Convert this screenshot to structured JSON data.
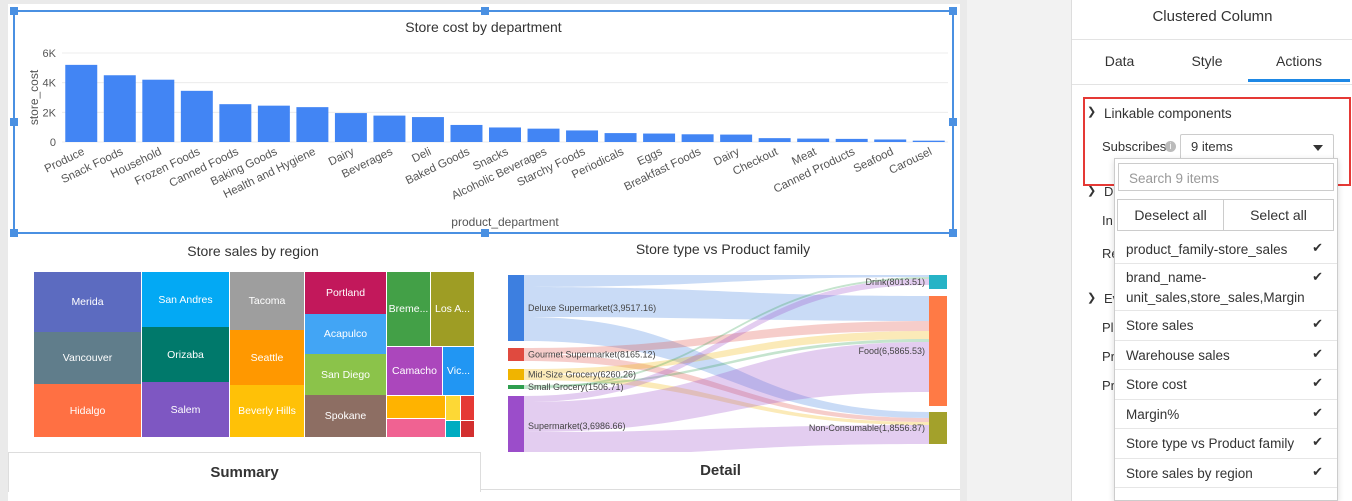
{
  "dashboard": {
    "bar_chart_title": "Store cost by department",
    "treemap_title": "Store sales by region",
    "sankey_title": "Store type vs Product family",
    "tabs": [
      "Summary",
      "Detail"
    ]
  },
  "chart_data": [
    {
      "type": "bar",
      "title": "Store cost by department",
      "xlabel": "product_department",
      "ylabel": "store_cost",
      "ylim": [
        0,
        6000
      ],
      "yticks": [
        "0",
        "2K",
        "4K",
        "6K"
      ],
      "categories": [
        "Produce",
        "Snack Foods",
        "Household",
        "Frozen Foods",
        "Canned Foods",
        "Baking Goods",
        "Health and Hygiene",
        "Dairy",
        "Beverages",
        "Deli",
        "Baked Goods",
        "Snacks",
        "Alcoholic Beverages",
        "Starchy Foods",
        "Periodicals",
        "Eggs",
        "Breakfast Foods",
        "Dairy",
        "Checkout",
        "Meat",
        "Canned Products",
        "Seafood",
        "Carousel"
      ],
      "values": [
        5200,
        4500,
        4200,
        3450,
        2550,
        2450,
        2350,
        1950,
        1780,
        1680,
        1150,
        980,
        900,
        780,
        600,
        570,
        520,
        500,
        260,
        230,
        210,
        170,
        90
      ],
      "color": "#4285f4",
      "grid": true
    },
    {
      "type": "treemap",
      "title": "Store sales by region",
      "labels": [
        "Merida",
        "Vancouver",
        "Hidalgo",
        "San Andres",
        "Orizaba",
        "Salem",
        "Tacoma",
        "Seattle",
        "Beverly Hills",
        "Portland",
        "Acapulco",
        "San Diego",
        "Spokane",
        "Bremerton",
        "Los Angeles",
        "Camacho",
        "Victoria"
      ],
      "labels_shown": [
        "Merida",
        "Vancouver",
        "Hidalgo",
        "San Andres",
        "Orizaba",
        "Salem",
        "Tacoma",
        "Seattle",
        "Beverly Hills",
        "Portland",
        "Acapulco",
        "San Diego",
        "Spokane",
        "Breme...",
        "Los A...",
        "Camacho",
        "Vic..."
      ]
    },
    {
      "type": "sankey",
      "title": "Store type vs Product family",
      "sources": [
        {
          "label": "Deluxe Supermarket(3,9517.16)",
          "color": "#3d7fe0"
        },
        {
          "label": "Gourmet Supermarket(8165.12)",
          "color": "#e04a3f"
        },
        {
          "label": "Mid-Size Grocery(6260.26)",
          "color": "#f0b400"
        },
        {
          "label": "Small Grocery(1506.71)",
          "color": "#2e9e4f"
        },
        {
          "label": "Supermarket(3,6986.66)",
          "color": "#9b4dca"
        }
      ],
      "targets": [
        {
          "label": "Drink(8013.51)",
          "color": "#26b3c6"
        },
        {
          "label": "Food(6,5865.53)",
          "color": "#ff7a45"
        },
        {
          "label": "Non-Consumable(1,8556.87)",
          "color": "#a3a12b"
        }
      ]
    }
  ],
  "panel": {
    "title": "Clustered Column",
    "tabs": [
      "Data",
      "Style",
      "Actions"
    ],
    "active_tab": "Actions",
    "linkable_label": "Linkable components",
    "subscribes_label": "Subscribes",
    "subscribes_value": "9 items",
    "hidden_labels": [
      "D",
      "In",
      "Re",
      "Ev",
      "Pl",
      "Pr",
      "Pr"
    ],
    "dropdown": {
      "search_placeholder": "Search 9 items",
      "deselect_all": "Deselect all",
      "select_all": "Select all",
      "items": [
        {
          "label": "product_family-store_sales",
          "checked": true
        },
        {
          "label": "brand_name-unit_sales,store_sales,Margin",
          "checked": true
        },
        {
          "label": "Store sales",
          "checked": true
        },
        {
          "label": "Warehouse sales",
          "checked": true
        },
        {
          "label": "Store cost",
          "checked": true
        },
        {
          "label": "Margin%",
          "checked": true
        },
        {
          "label": "Store type vs Product family",
          "checked": true
        },
        {
          "label": "Store sales by region",
          "checked": true
        }
      ]
    },
    "highlight_color": "#e53935",
    "accent_color": "#1e88e5"
  }
}
